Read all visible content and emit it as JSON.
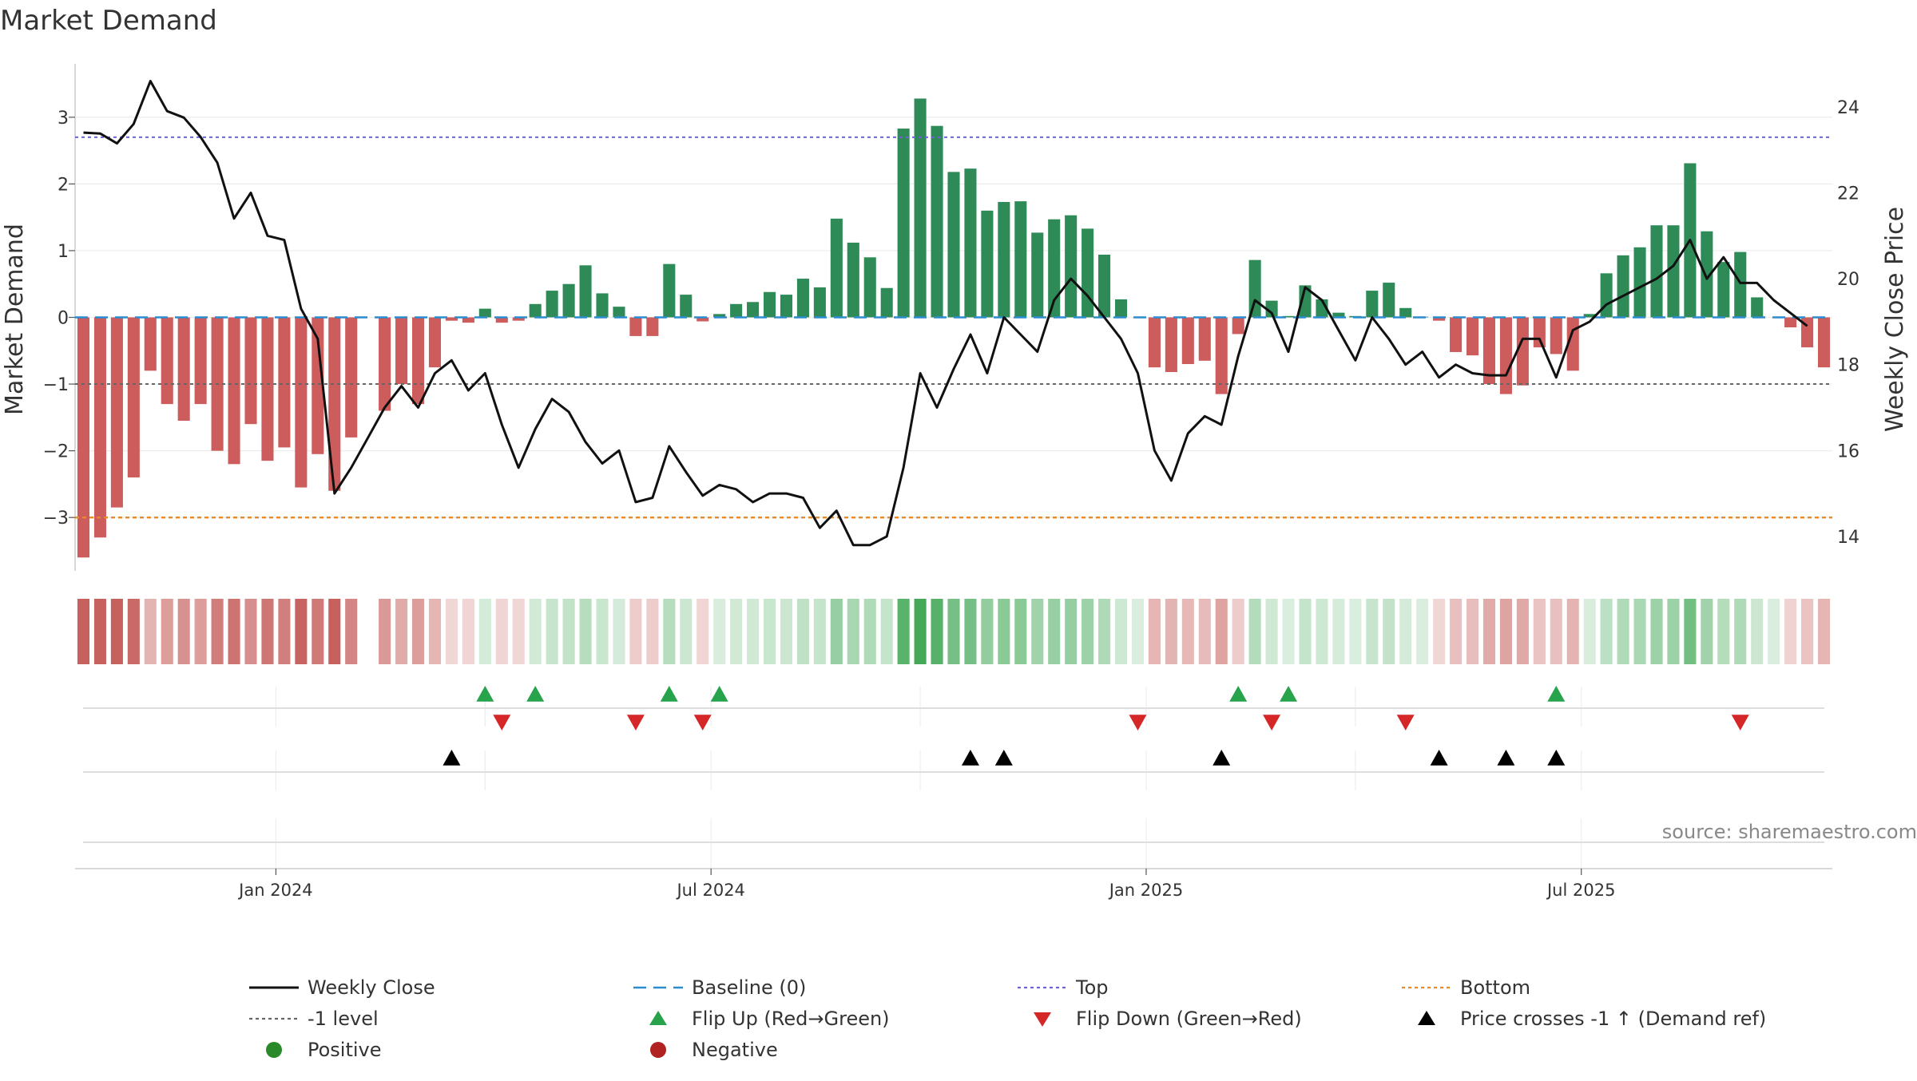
{
  "chart_data": {
    "type": "bar",
    "title": "Market Demand",
    "ylabel_left": "Market Demand",
    "ylabel_right": "Weekly Close Price",
    "source": "source: sharemaestro.com",
    "left_axis": {
      "ylim": [
        -3.8,
        3.8
      ],
      "ticks": [
        -3,
        -2,
        -1,
        0,
        1,
        2,
        3
      ],
      "tick_labels": [
        "−3",
        "−2",
        "−1",
        "0",
        "1",
        "2",
        "3"
      ]
    },
    "right_axis": {
      "ylim": [
        13.2,
        25.0
      ],
      "ticks": [
        14,
        16,
        18,
        20,
        22,
        24
      ],
      "tick_labels": [
        "14",
        "16",
        "18",
        "20",
        "22",
        "24"
      ]
    },
    "x_axis": {
      "ticks": [
        {
          "label": "Jan 2024",
          "week_index": 11.5
        },
        {
          "label": "Jul 2024",
          "week_index": 37.5
        },
        {
          "label": "Jan 2025",
          "week_index": 63.5
        },
        {
          "label": "Jul 2025",
          "week_index": 89.5
        }
      ]
    },
    "levels": {
      "top": 2.7,
      "bottom": -3.0,
      "minus_one": -1,
      "baseline": 0
    },
    "demand": [
      -3.6,
      -3.3,
      -2.85,
      -2.4,
      -0.8,
      -1.3,
      -1.55,
      -1.3,
      -2.0,
      -2.2,
      -1.6,
      -2.15,
      -1.95,
      -2.55,
      -2.05,
      -2.6,
      -1.8,
      null,
      -1.4,
      -1.0,
      -1.3,
      -0.75,
      -0.05,
      -0.08,
      0.13,
      -0.08,
      -0.05,
      0.2,
      0.4,
      0.5,
      0.78,
      0.36,
      0.16,
      -0.28,
      -0.28,
      0.8,
      0.34,
      -0.06,
      0.05,
      0.2,
      0.23,
      0.38,
      0.34,
      0.58,
      0.45,
      1.48,
      1.12,
      0.9,
      0.44,
      2.83,
      3.28,
      2.87,
      2.18,
      2.23,
      1.6,
      1.73,
      1.74,
      1.27,
      1.47,
      1.53,
      1.33,
      0.94,
      0.27,
      0.0,
      -0.75,
      -0.82,
      -0.7,
      -0.65,
      -1.15,
      -0.25,
      0.86,
      0.25,
      0.02,
      0.48,
      0.27,
      0.07,
      0.02,
      0.4,
      0.52,
      0.14,
      0.01,
      -0.05,
      -0.52,
      -0.57,
      -1.0,
      -1.15,
      -1.02,
      -0.45,
      -0.55,
      -0.8,
      0.05,
      0.66,
      0.93,
      1.05,
      1.38,
      1.38,
      2.31,
      1.29,
      0.83,
      0.98,
      0.3,
      0.0,
      -0.15,
      -0.45,
      -0.75
    ],
    "weekly_close": [
      23.4,
      23.38,
      23.15,
      23.6,
      24.6,
      23.9,
      23.75,
      23.3,
      22.7,
      21.4,
      22.0,
      21.0,
      20.9,
      19.3,
      18.6,
      15.0,
      15.6,
      16.3,
      17.0,
      17.5,
      17.0,
      17.8,
      18.1,
      17.4,
      17.8,
      16.6,
      15.6,
      16.5,
      17.2,
      16.9,
      16.2,
      15.7,
      16.0,
      14.8,
      14.9,
      16.1,
      15.5,
      14.95,
      15.2,
      15.1,
      14.8,
      15.0,
      15.0,
      14.9,
      14.2,
      14.6,
      13.8,
      13.8,
      14.0,
      15.6,
      17.8,
      17.0,
      17.9,
      18.7,
      17.8,
      19.1,
      18.7,
      18.3,
      19.5,
      20.0,
      19.6,
      19.1,
      18.6,
      17.8,
      16.0,
      15.3,
      16.4,
      16.8,
      16.6,
      18.2,
      19.5,
      19.2,
      18.3,
      19.8,
      19.5,
      18.8,
      18.1,
      19.1,
      18.6,
      18.0,
      18.3,
      17.7,
      18.0,
      17.8,
      17.75,
      17.75,
      18.6,
      18.6,
      17.7,
      18.8,
      19.0,
      19.4,
      19.6,
      19.8,
      20.0,
      20.3,
      20.9,
      20.0,
      20.5,
      19.9,
      19.9,
      19.5,
      19.2,
      18.9
    ],
    "flip_up_weeks": [
      24,
      27,
      35,
      38,
      69,
      72,
      88
    ],
    "flip_down_weeks": [
      25,
      33,
      37,
      63,
      71,
      79,
      99
    ],
    "price_cross_weeks": [
      22,
      53,
      55,
      68,
      81,
      85,
      88
    ],
    "legend": [
      {
        "label": "Weekly Close",
        "marker": "line-solid",
        "color": "#111111"
      },
      {
        "label": "Baseline (0)",
        "marker": "line-dashed",
        "color": "#2b8ccf"
      },
      {
        "label": "Top",
        "marker": "line-dotted",
        "color": "#6b63d6"
      },
      {
        "label": "Bottom",
        "marker": "line-dotted",
        "color": "#e88a2a"
      },
      {
        "label": "-1 level",
        "marker": "line-dotted",
        "color": "#666666"
      },
      {
        "label": "Flip Up (Red→Green)",
        "marker": "triangle-up",
        "color": "#27a44b"
      },
      {
        "label": "Flip Down (Green→Red)",
        "marker": "triangle-down",
        "color": "#d62728"
      },
      {
        "label": "Price crosses -1 ↑ (Demand ref)",
        "marker": "triangle-up",
        "color": "#000000"
      },
      {
        "label": "Positive",
        "marker": "circle",
        "color": "#2a8a2a"
      },
      {
        "label": "Negative",
        "marker": "circle",
        "color": "#b22222"
      }
    ],
    "colors": {
      "positive_bar": "#2e8b57",
      "negative_bar": "#cd5c5c",
      "close_line": "#111111",
      "baseline": "#2b8ccf",
      "top": "#6b63d6",
      "bottom": "#e88a2a",
      "minus_one": "#666666",
      "flip_up": "#27a44b",
      "flip_down": "#d62728",
      "price_cross": "#000000"
    },
    "grid": true
  }
}
